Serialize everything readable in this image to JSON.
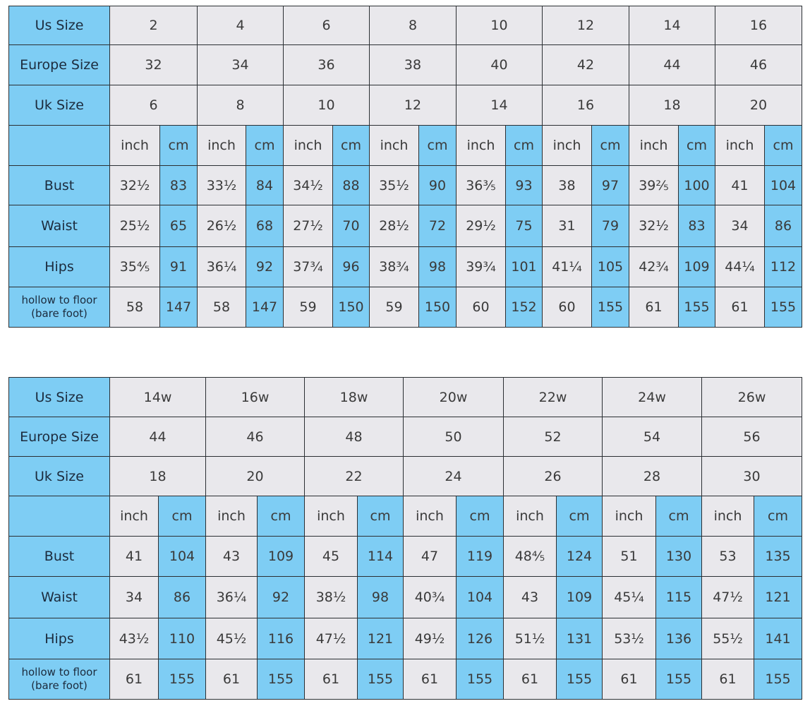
{
  "colors": {
    "header_blue": "#7ecdf4",
    "cell_gray": "#e9e8ec",
    "border": "#2b2f33"
  },
  "unit_labels": {
    "inch": "inch",
    "cm": "cm"
  },
  "row_labels": {
    "us": "Us Size",
    "eu": "Europe Size",
    "uk": "Uk Size",
    "bust": "Bust",
    "waist": "Waist",
    "hips": "Hips",
    "hollow": "hollow to floor",
    "hollow_sub": "(bare foot)"
  },
  "tables": [
    {
      "us": [
        "2",
        "4",
        "6",
        "8",
        "10",
        "12",
        "14",
        "16"
      ],
      "eu": [
        "32",
        "34",
        "36",
        "38",
        "40",
        "42",
        "44",
        "46"
      ],
      "uk": [
        "6",
        "8",
        "10",
        "12",
        "14",
        "16",
        "18",
        "20"
      ],
      "bust": [
        [
          "32½",
          "83"
        ],
        [
          "33½",
          "84"
        ],
        [
          "34½",
          "88"
        ],
        [
          "35½",
          "90"
        ],
        [
          "36⅗",
          "93"
        ],
        [
          "38",
          "97"
        ],
        [
          "39⅖",
          "100"
        ],
        [
          "41",
          "104"
        ]
      ],
      "waist": [
        [
          "25½",
          "65"
        ],
        [
          "26½",
          "68"
        ],
        [
          "27½",
          "70"
        ],
        [
          "28½",
          "72"
        ],
        [
          "29½",
          "75"
        ],
        [
          "31",
          "79"
        ],
        [
          "32½",
          "83"
        ],
        [
          "34",
          "86"
        ]
      ],
      "hips": [
        [
          "35⅘",
          "91"
        ],
        [
          "36¼",
          "92"
        ],
        [
          "37¾",
          "96"
        ],
        [
          "38¾",
          "98"
        ],
        [
          "39¾",
          "101"
        ],
        [
          "41¼",
          "105"
        ],
        [
          "42¾",
          "109"
        ],
        [
          "44¼",
          "112"
        ]
      ],
      "hollow": [
        [
          "58",
          "147"
        ],
        [
          "58",
          "147"
        ],
        [
          "59",
          "150"
        ],
        [
          "59",
          "150"
        ],
        [
          "60",
          "152"
        ],
        [
          "60",
          "155"
        ],
        [
          "61",
          "155"
        ],
        [
          "61",
          "155"
        ]
      ]
    },
    {
      "us": [
        "14w",
        "16w",
        "18w",
        "20w",
        "22w",
        "24w",
        "26w"
      ],
      "eu": [
        "44",
        "46",
        "48",
        "50",
        "52",
        "54",
        "56"
      ],
      "uk": [
        "18",
        "20",
        "22",
        "24",
        "26",
        "28",
        "30"
      ],
      "bust": [
        [
          "41",
          "104"
        ],
        [
          "43",
          "109"
        ],
        [
          "45",
          "114"
        ],
        [
          "47",
          "119"
        ],
        [
          "48⅘",
          "124"
        ],
        [
          "51",
          "130"
        ],
        [
          "53",
          "135"
        ]
      ],
      "waist": [
        [
          "34",
          "86"
        ],
        [
          "36¼",
          "92"
        ],
        [
          "38½",
          "98"
        ],
        [
          "40¾",
          "104"
        ],
        [
          "43",
          "109"
        ],
        [
          "45¼",
          "115"
        ],
        [
          "47½",
          "121"
        ]
      ],
      "hips": [
        [
          "43½",
          "110"
        ],
        [
          "45½",
          "116"
        ],
        [
          "47½",
          "121"
        ],
        [
          "49½",
          "126"
        ],
        [
          "51½",
          "131"
        ],
        [
          "53½",
          "136"
        ],
        [
          "55½",
          "141"
        ]
      ],
      "hollow": [
        [
          "61",
          "155"
        ],
        [
          "61",
          "155"
        ],
        [
          "61",
          "155"
        ],
        [
          "61",
          "155"
        ],
        [
          "61",
          "155"
        ],
        [
          "61",
          "155"
        ],
        [
          "61",
          "155"
        ]
      ]
    }
  ]
}
